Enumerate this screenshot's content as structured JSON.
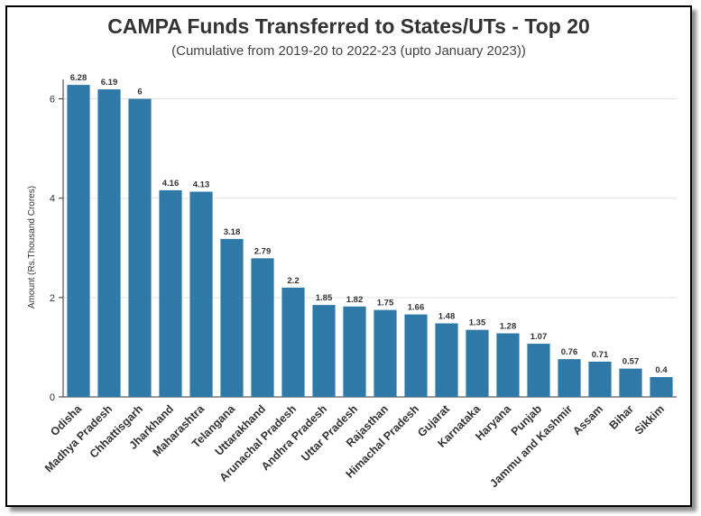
{
  "chart_data": {
    "type": "bar",
    "title": "CAMPA Funds Transferred to States/UTs - Top 20",
    "subtitle": "(Cumulative from 2019-20 to 2022-23 (upto January 2023))",
    "xlabel": "",
    "ylabel": "Amount (Rs.Thousand Crores)",
    "ylim": [
      0,
      6.5
    ],
    "yticks": [
      0,
      2,
      4,
      6
    ],
    "grid": true,
    "bar_color": "#2E79A8",
    "categories": [
      "Odisha",
      "Madhya Pradesh",
      "Chhattisgarh",
      "Jharkhand",
      "Maharashtra",
      "Telangana",
      "Uttarakhand",
      "Arunachal Pradesh",
      "Andhra Pradesh",
      "Uttar Pradesh",
      "Rajasthan",
      "Himachal Pradesh",
      "Gujarat",
      "Karnataka",
      "Haryana",
      "Punjab",
      "Jammu and Kashmir",
      "Assam",
      "Bihar",
      "Sikkim"
    ],
    "values": [
      6.28,
      6.19,
      6,
      4.16,
      4.13,
      3.18,
      2.79,
      2.2,
      1.85,
      1.82,
      1.75,
      1.66,
      1.48,
      1.35,
      1.28,
      1.07,
      0.76,
      0.71,
      0.57,
      0.4
    ],
    "value_labels": [
      "6.28",
      "6.19",
      "6",
      "4.16",
      "4.13",
      "3.18",
      "2.79",
      "2.2",
      "1.85",
      "1.82",
      "1.75",
      "1.66",
      "1.48",
      "1.35",
      "1.28",
      "1.07",
      "0.76",
      "0.71",
      "0.57",
      "0.4"
    ]
  }
}
